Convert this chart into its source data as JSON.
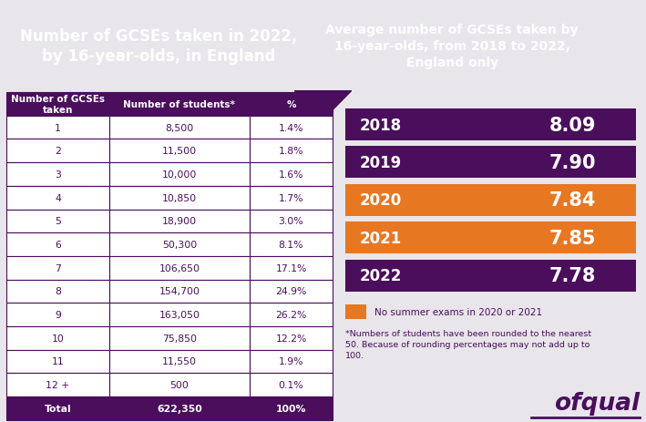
{
  "bg_color": "#e8e6eb",
  "header_bg": "#4a0e5c",
  "purple_dark": "#4a0e5c",
  "orange": "#e87722",
  "white": "#ffffff",
  "title_left": "Number of GCSEs taken in 2022,\nby 16-year-olds, in England",
  "title_right": "Average number of GCSEs taken by\n16-year-olds, from 2018 to 2022,\nEngland only",
  "table_headers": [
    "Number of GCSEs\ntaken",
    "Number of students*",
    "%"
  ],
  "table_rows": [
    [
      "1",
      "8,500",
      "1.4%"
    ],
    [
      "2",
      "11,500",
      "1.8%"
    ],
    [
      "3",
      "10,000",
      "1.6%"
    ],
    [
      "4",
      "10,850",
      "1.7%"
    ],
    [
      "5",
      "18,900",
      "3.0%"
    ],
    [
      "6",
      "50,300",
      "8.1%"
    ],
    [
      "7",
      "106,650",
      "17.1%"
    ],
    [
      "8",
      "154,700",
      "24.9%"
    ],
    [
      "9",
      "163,050",
      "26.2%"
    ],
    [
      "10",
      "75,850",
      "12.2%"
    ],
    [
      "11",
      "11,550",
      "1.9%"
    ],
    [
      "12 +",
      "500",
      "0.1%"
    ],
    [
      "Total",
      "622,350",
      "100%"
    ]
  ],
  "bar_years": [
    "2018",
    "2019",
    "2020",
    "2021",
    "2022"
  ],
  "bar_values": [
    "8.09",
    "7.90",
    "7.84",
    "7.85",
    "7.78"
  ],
  "bar_colors": [
    "#4a0e5c",
    "#4a0e5c",
    "#e87722",
    "#e87722",
    "#4a0e5c"
  ],
  "legend_text": "No summer exams in 2020 or 2021",
  "footnote": "*Numbers of students have been rounded to the nearest\n50. Because of rounding percentages may not add up to\n100.",
  "ofqual_text": "ofqual"
}
